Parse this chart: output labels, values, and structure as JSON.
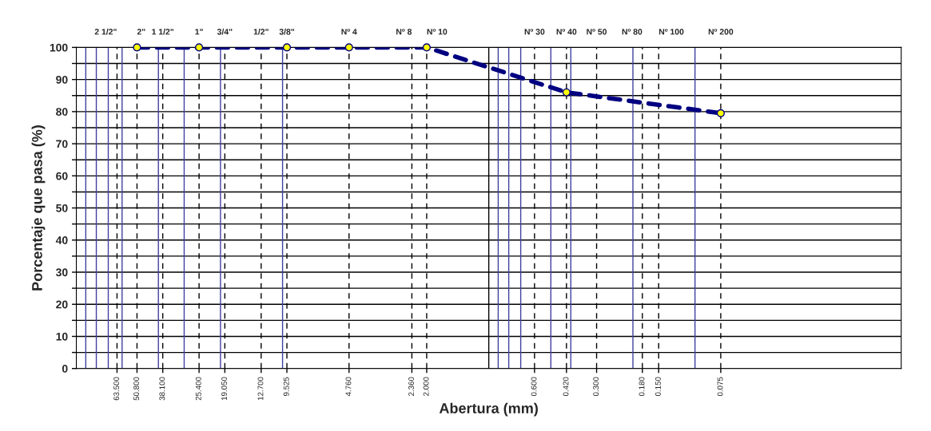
{
  "chart_data": {
    "type": "line",
    "xlabel": "Abertura (mm)",
    "ylabel": "Porcentaje que pasa (%)",
    "log": "x",
    "xlim": [
      100,
      0.01
    ],
    "ylim": [
      0,
      100
    ],
    "x": [
      50.8,
      25.4,
      9.525,
      4.76,
      2.0,
      0.42,
      0.075
    ],
    "series": [
      {
        "color": "#000080",
        "values": [
          100,
          100,
          100,
          100,
          100,
          86,
          79.5
        ]
      }
    ],
    "annotations": [
      {
        "text": "2 1/2\"",
        "x": 63.5,
        "y": 100
      },
      {
        "text": "2\"",
        "x": 50.8,
        "y": 100
      },
      {
        "text": "1 1/2\"",
        "x": 38.1,
        "y": 100
      },
      {
        "text": "1\"",
        "x": 25.4,
        "y": 100
      },
      {
        "text": "3/4\"",
        "x": 19.05,
        "y": 100
      },
      {
        "text": "1/2\"",
        "x": 12.7,
        "y": 100
      },
      {
        "text": "3/8\"",
        "x": 9.525,
        "y": 100
      }
    ],
    "marker": "circle",
    "line_style": "dashed",
    "grid": "y",
    "xticks": [
      {
        "value": 63.5,
        "label": "63.500"
      },
      {
        "value": 50.8,
        "label": "50.800"
      },
      {
        "value": 38.1,
        "label": "38.100"
      },
      {
        "value": 25.4,
        "label": "25.400"
      },
      {
        "value": 19.05,
        "label": "19.050"
      },
      {
        "value": 12.7,
        "label": "12.700"
      },
      {
        "value": 9.525,
        "label": "9.525"
      },
      {
        "value": 4.76,
        "label": "4.760"
      },
      {
        "value": 2.36,
        "label": "2.360"
      },
      {
        "value": 2.0,
        "label": "2.000"
      },
      {
        "value": 0.6,
        "label": "0.600"
      },
      {
        "value": 0.42,
        "label": "0.420"
      },
      {
        "value": 0.3,
        "label": "0.300"
      },
      {
        "value": 0.18,
        "label": "0.180"
      },
      {
        "value": 0.15,
        "label": "0.150"
      },
      {
        "value": 0.075,
        "label": "0.075"
      }
    ],
    "yticks": [
      0,
      {
        "value": 5,
        "label": null
      },
      10,
      {
        "value": 15,
        "label": null
      },
      20,
      {
        "value": 25,
        "label": null
      },
      30,
      {
        "value": 35,
        "label": null
      },
      40,
      {
        "value": 45,
        "label": null
      },
      50,
      {
        "value": 55,
        "label": null
      },
      60,
      {
        "value": 65,
        "label": null
      },
      70,
      {
        "value": 75,
        "label": null
      },
      80,
      {
        "value": 85,
        "label": null
      },
      90,
      {
        "value": 95,
        "label": null
      },
      100
    ],
    "ref_lines": [
      {
        "axis": "x",
        "value": 90,
        "color": "#4040a0"
      },
      {
        "axis": "x",
        "value": 80,
        "color": "#4040a0"
      },
      {
        "axis": "x",
        "value": 70,
        "color": "#4040a0"
      },
      {
        "axis": "x",
        "value": 60,
        "color": "#4040a0"
      },
      {
        "axis": "x",
        "value": 40,
        "color": "#4040a0"
      },
      {
        "axis": "x",
        "value": 30,
        "color": "#4040a0"
      },
      {
        "axis": "x",
        "value": 20,
        "color": "#4040a0"
      },
      {
        "axis": "x",
        "value": 10,
        "color": "#4040a0"
      },
      {
        "axis": "x",
        "value": 1,
        "color": "#000000"
      },
      {
        "axis": "x",
        "value": 0.9,
        "color": "#4040a0"
      },
      {
        "axis": "x",
        "value": 0.8,
        "color": "#4040a0"
      },
      {
        "axis": "x",
        "value": 0.7,
        "color": "#4040a0"
      },
      {
        "axis": "x",
        "value": 0.5,
        "color": "#4040a0"
      },
      {
        "axis": "x",
        "value": 0.4,
        "color": "#4040a0"
      },
      {
        "axis": "x",
        "value": 0.2,
        "color": "#4040a0"
      },
      {
        "axis": "x",
        "value": 0.1,
        "color": "#4040a0"
      },
      {
        "axis": "x",
        "value": 63.5,
        "color": "#000000",
        "line_style": "dashed"
      },
      {
        "axis": "x",
        "value": 50.8,
        "color": "#000000",
        "line_style": "dashed"
      },
      {
        "axis": "x",
        "value": 38.1,
        "color": "#000000",
        "line_style": "dashed"
      },
      {
        "axis": "x",
        "value": 25.4,
        "color": "#000000",
        "line_style": "dashed"
      },
      {
        "axis": "x",
        "value": 19.05,
        "color": "#000000",
        "line_style": "dashed"
      },
      {
        "axis": "x",
        "value": 12.7,
        "color": "#000000",
        "line_style": "dashed"
      },
      {
        "axis": "x",
        "value": 9.525,
        "color": "#000000",
        "line_style": "dashed"
      },
      {
        "axis": "x",
        "value": 4.76,
        "label": "Nº 4",
        "color": "#000000",
        "line_style": "dashed"
      },
      {
        "axis": "x",
        "value": 2.36,
        "label": "Nº 8",
        "color": "#000000",
        "line_style": "dashed"
      },
      {
        "axis": "x",
        "value": 2.0,
        "label": "Nº 10",
        "color": "#000000",
        "line_style": "dashed"
      },
      {
        "axis": "x",
        "value": 0.6,
        "label": "Nº 30",
        "color": "#000000",
        "line_style": "dashed"
      },
      {
        "axis": "x",
        "value": 0.42,
        "label": "Nº 40",
        "color": "#000000",
        "line_style": "dashed"
      },
      {
        "axis": "x",
        "value": 0.3,
        "label": "Nº 50",
        "color": "#000000",
        "line_style": "dashed"
      },
      {
        "axis": "x",
        "value": 0.18,
        "label": "Nº 80",
        "color": "#000000",
        "line_style": "dashed"
      },
      {
        "axis": "x",
        "value": 0.15,
        "label": "Nº 100",
        "color": "#000000",
        "line_style": "dashed"
      },
      {
        "axis": "x",
        "value": 0.075,
        "label": "Nº 200",
        "color": "#000000",
        "line_style": "dashed"
      }
    ]
  }
}
